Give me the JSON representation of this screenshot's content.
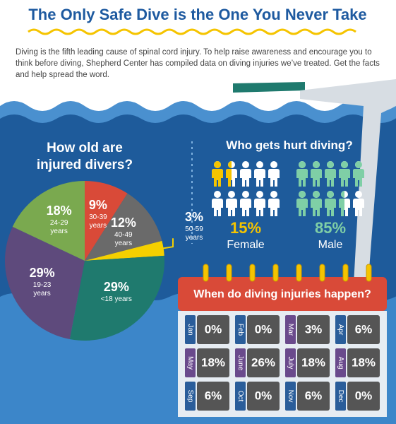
{
  "header": {
    "title": "The Only Safe Dive is the One You Never Take",
    "intro": "Diving is the fifth leading cause of spinal cord injury. To help raise awareness and encourage you to think before diving, Shepherd Center has compiled data on diving injuries we’ve treated. Get the facts and help spread the word."
  },
  "chart_data": [
    {
      "type": "pie",
      "title": "How old are injured divers?",
      "categories": [
        "30-39 years",
        "40-49 years",
        "50-59 years",
        "<18 years",
        "19-23 years",
        "24-29 years"
      ],
      "values": [
        9,
        12,
        3,
        29,
        29,
        18
      ],
      "value_labels": [
        "9%",
        "12%",
        "3%",
        "29%",
        "29%",
        "18%"
      ],
      "colors": [
        "#d94a38",
        "#6a6a6a",
        "#f5d000",
        "#1f7a6e",
        "#5e4a7c",
        "#7aa94f"
      ]
    },
    {
      "type": "pictograph",
      "title": "Who gets hurt diving?",
      "categories": [
        "Female",
        "Male"
      ],
      "values": [
        15,
        85
      ],
      "value_labels": [
        "15%",
        "85%"
      ],
      "colors": [
        "#f5c400",
        "#7fcfa6"
      ]
    },
    {
      "type": "calendar",
      "title": "When do diving injuries happen?",
      "categories": [
        "Jan",
        "Feb",
        "Mar",
        "Apr",
        "May",
        "June",
        "July",
        "Aug",
        "Sep",
        "Oct",
        "Nov",
        "Dec"
      ],
      "values": [
        0,
        0,
        3,
        6,
        18,
        26,
        18,
        18,
        6,
        0,
        6,
        0
      ],
      "value_labels": [
        "0%",
        "0%",
        "3%",
        "6%",
        "18%",
        "26%",
        "18%",
        "18%",
        "6%",
        "0%",
        "6%",
        "0%"
      ],
      "colors": [
        "#2a5d9a",
        "#2a5d9a",
        "#6a4a8c",
        "#2a5d9a",
        "#6a4a8c",
        "#6a4a8c",
        "#6a4a8c",
        "#6a4a8c",
        "#2a5d9a",
        "#2a5d9a",
        "#2a5d9a",
        "#2a5d9a"
      ]
    }
  ]
}
